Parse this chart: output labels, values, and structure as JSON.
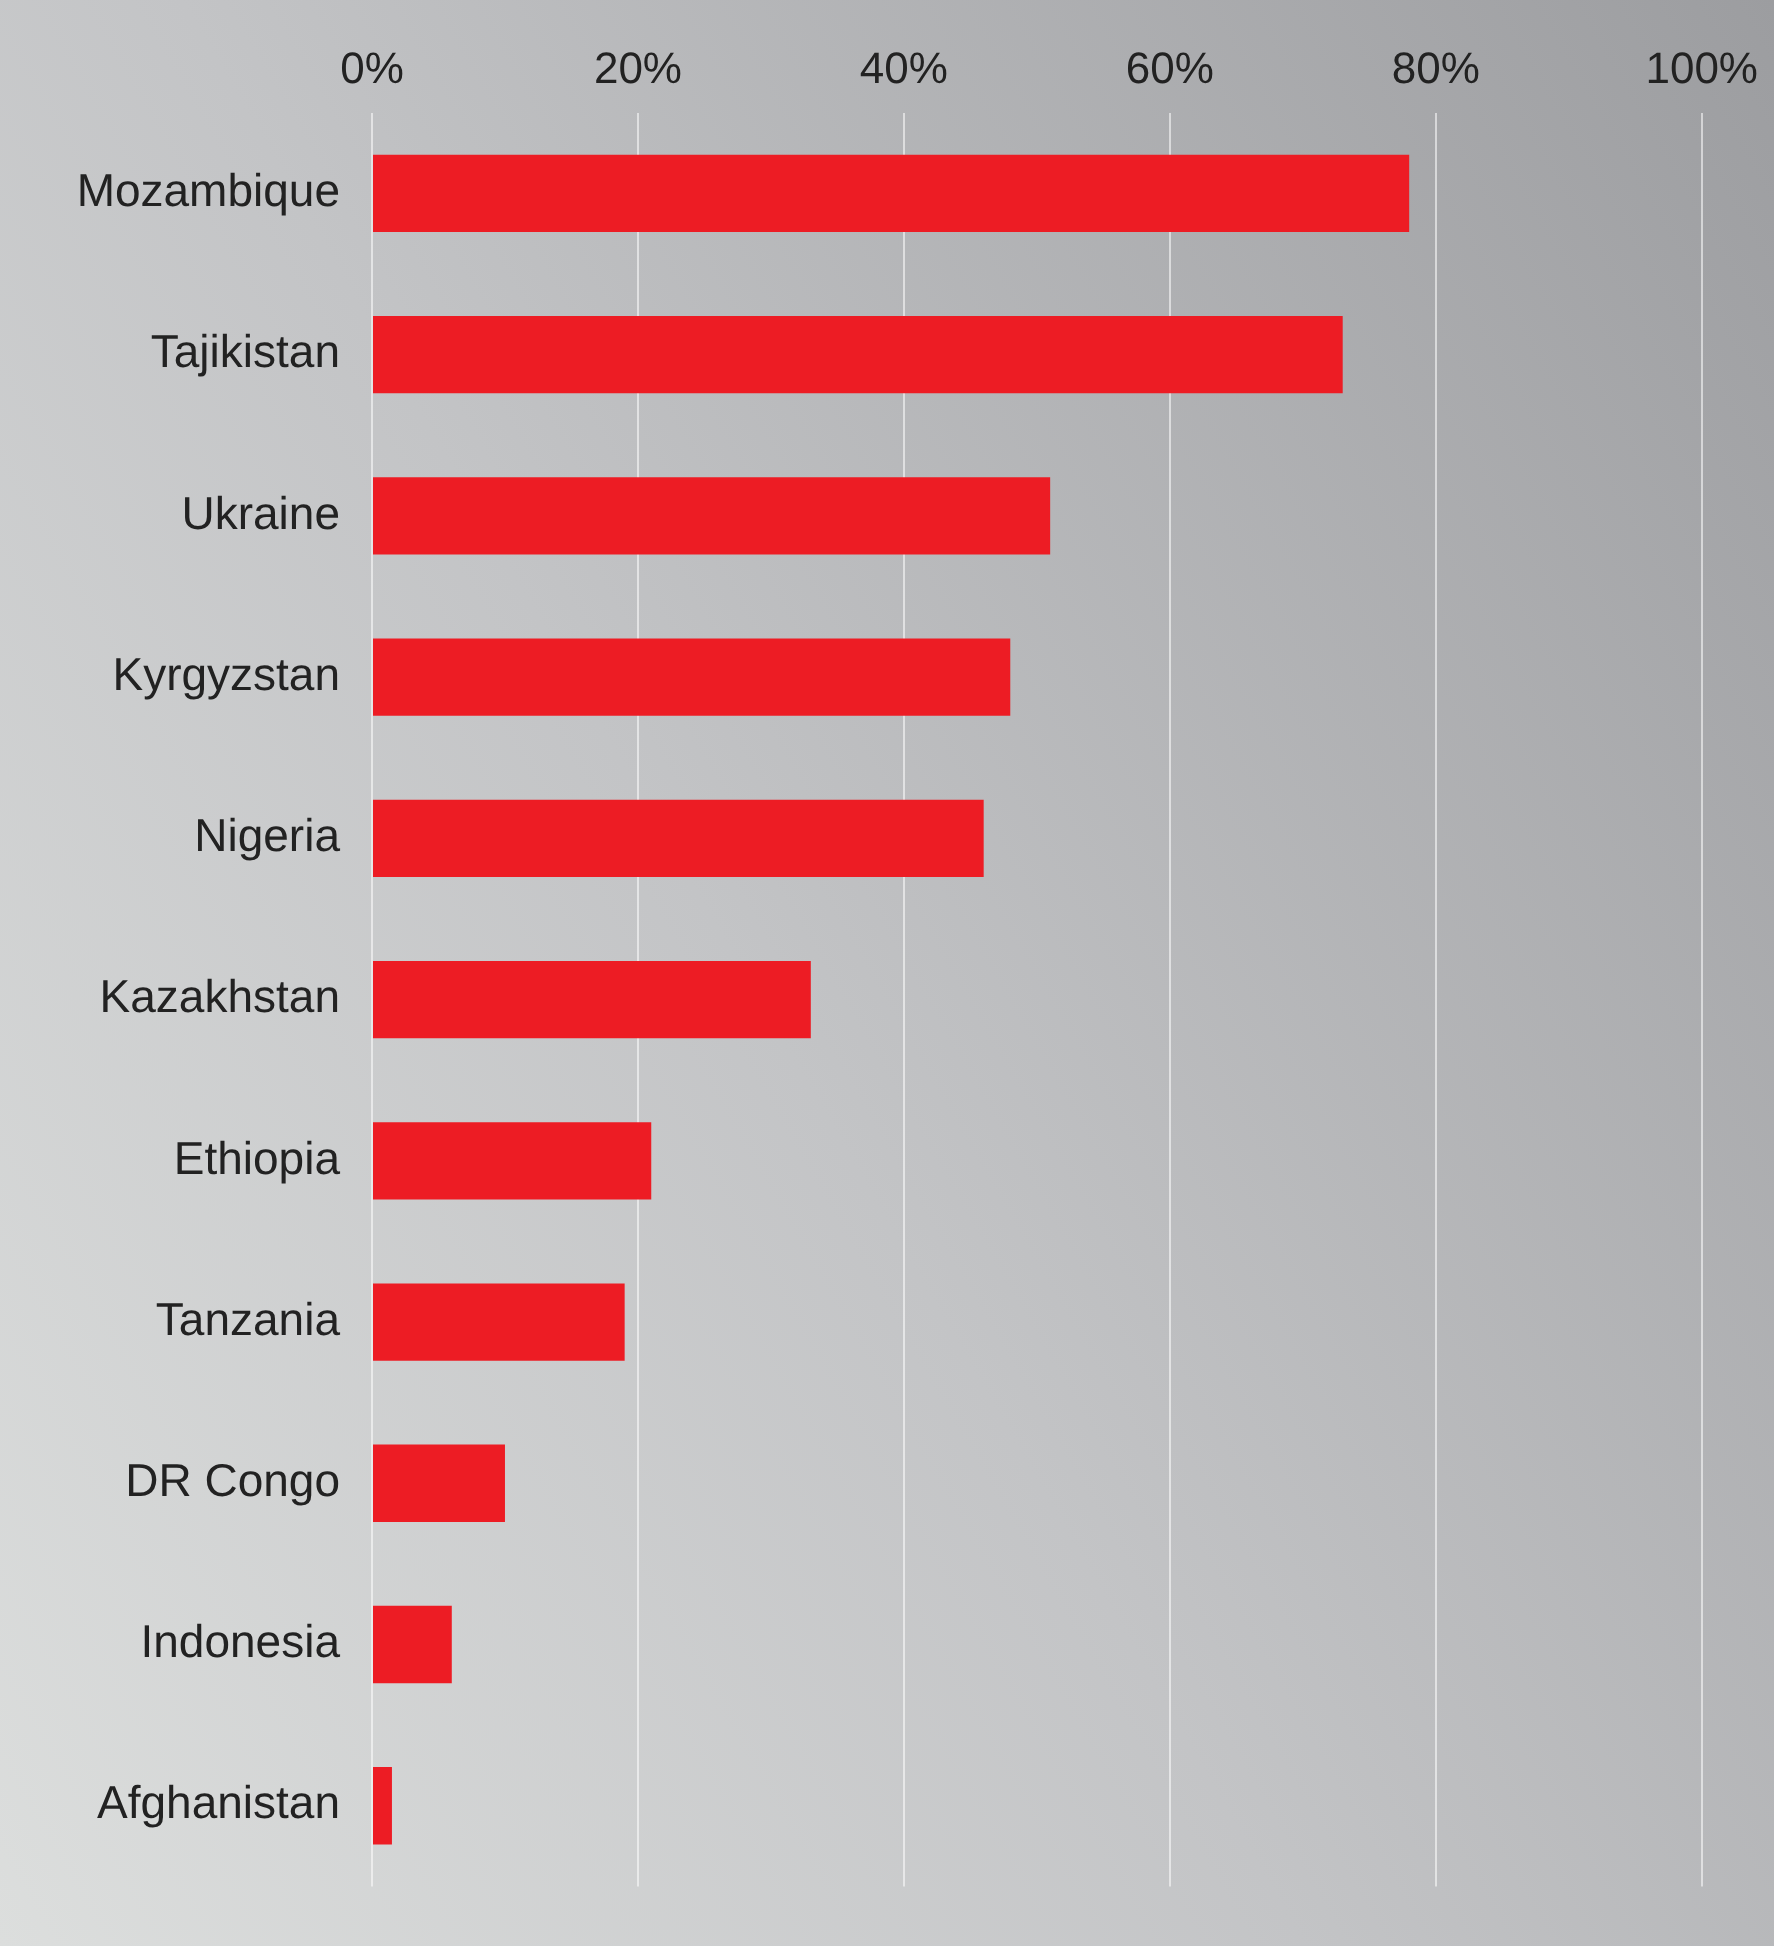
{
  "chart_data": {
    "type": "bar",
    "orientation": "horizontal",
    "categories": [
      "Mozambique",
      "Tajikistan",
      "Ukraine",
      "Kyrgyzstan",
      "Nigeria",
      "Kazakhstan",
      "Ethiopia",
      "Tanzania",
      "DR Congo",
      "Indonesia",
      "Afghanistan"
    ],
    "values": [
      78,
      73,
      51,
      48,
      46,
      33,
      21,
      19,
      10,
      6,
      1.5
    ],
    "color": "#ed1c24",
    "xlim": [
      0,
      100
    ],
    "xticks": [
      {
        "value": 0,
        "label": "0%"
      },
      {
        "value": 20,
        "label": "20%"
      },
      {
        "value": 40,
        "label": "40%"
      },
      {
        "value": 60,
        "label": "60%"
      },
      {
        "value": 80,
        "label": "80%"
      },
      {
        "value": 100,
        "label": "100%"
      }
    ],
    "grid": "x",
    "legend": false
  }
}
